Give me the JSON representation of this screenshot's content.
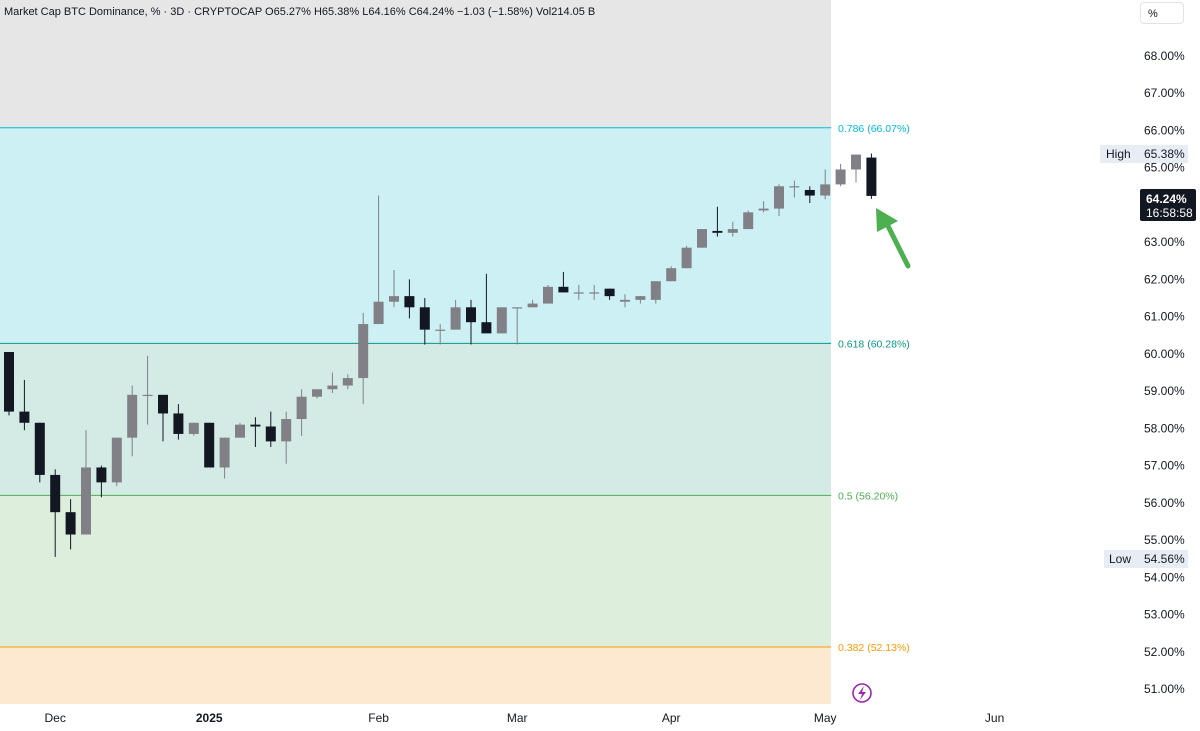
{
  "legend": {
    "text": "Market Cap BTC Dominance, % · 3D · CRYPTOCAP  O65.27%  H65.38%  L64.16%  C64.24%  −1.03 (−1.58%)  Vol214.05 B"
  },
  "unit_label": "%",
  "price_tag": {
    "value": "64.24%",
    "countdown": "16:58:58"
  },
  "high_tag": {
    "label": "High",
    "value": "65.38%"
  },
  "low_tag": {
    "label": "Low",
    "value": "54.56%"
  },
  "colors": {
    "bear_candle": "#131722",
    "bull_candle": "#808086",
    "arrow": "#4caf50",
    "lightning": "#9c27b0"
  },
  "chart_data": {
    "type": "candlestick",
    "title": "Market Cap BTC Dominance, %",
    "ylim": [
      50.6,
      69.5
    ],
    "y_ticks": [
      "68.00%",
      "67.00%",
      "66.00%",
      "65.00%",
      "64.00%",
      "63.00%",
      "62.00%",
      "61.00%",
      "60.00%",
      "59.00%",
      "58.00%",
      "57.00%",
      "56.00%",
      "55.00%",
      "54.00%",
      "53.00%",
      "52.00%",
      "51.00%"
    ],
    "y_tick_values": [
      68,
      67,
      66,
      65,
      64,
      63,
      62,
      61,
      60,
      59,
      58,
      57,
      56,
      55,
      54,
      53,
      52,
      51
    ],
    "x_ticks": [
      "Dec",
      "2025",
      "Feb",
      "Mar",
      "Apr",
      "May",
      "Jun"
    ],
    "x_tick_index": [
      3,
      13,
      24,
      33,
      43,
      53,
      64
    ],
    "fib_levels": [
      {
        "label": "0.786 (66.07%)",
        "value": 66.07,
        "color": "#00bcd4",
        "fill": "#cdf0f5"
      },
      {
        "label": "0.618 (60.28%)",
        "value": 60.28,
        "color": "#089981",
        "fill": "#d4ebe5"
      },
      {
        "label": "0.5 (56.20%)",
        "value": 56.2,
        "color": "#4caf50",
        "fill": "#ddeedd"
      },
      {
        "label": "0.382 (52.13%)",
        "value": 52.13,
        "color": "#ff9800",
        "fill": "#fde9d0"
      }
    ],
    "top_zone_fill": "#e6e6e6",
    "candles": [
      {
        "o": 60.05,
        "h": 60.05,
        "l": 58.35,
        "c": 58.45
      },
      {
        "o": 58.45,
        "h": 59.3,
        "l": 57.95,
        "c": 58.15
      },
      {
        "o": 58.15,
        "h": 58.15,
        "l": 56.55,
        "c": 56.75
      },
      {
        "o": 56.75,
        "h": 56.9,
        "l": 54.55,
        "c": 55.75
      },
      {
        "o": 55.75,
        "h": 56.1,
        "l": 54.75,
        "c": 55.15
      },
      {
        "o": 55.15,
        "h": 57.95,
        "l": 55.15,
        "c": 56.95
      },
      {
        "o": 56.95,
        "h": 57.0,
        "l": 56.15,
        "c": 56.55
      },
      {
        "o": 56.55,
        "h": 57.75,
        "l": 56.45,
        "c": 57.75
      },
      {
        "o": 57.75,
        "h": 59.15,
        "l": 57.25,
        "c": 58.9
      },
      {
        "o": 58.9,
        "h": 59.95,
        "l": 58.1,
        "c": 58.9
      },
      {
        "o": 58.9,
        "h": 58.9,
        "l": 57.65,
        "c": 58.4
      },
      {
        "o": 58.4,
        "h": 58.65,
        "l": 57.7,
        "c": 57.85
      },
      {
        "o": 57.85,
        "h": 58.15,
        "l": 57.8,
        "c": 58.15
      },
      {
        "o": 58.15,
        "h": 58.15,
        "l": 56.95,
        "c": 56.95
      },
      {
        "o": 56.95,
        "h": 57.75,
        "l": 56.65,
        "c": 57.75
      },
      {
        "o": 57.75,
        "h": 58.15,
        "l": 57.75,
        "c": 58.1
      },
      {
        "o": 58.1,
        "h": 58.3,
        "l": 57.5,
        "c": 58.05
      },
      {
        "o": 58.05,
        "h": 58.45,
        "l": 57.5,
        "c": 57.65
      },
      {
        "o": 57.65,
        "h": 58.45,
        "l": 57.05,
        "c": 58.25
      },
      {
        "o": 58.25,
        "h": 59.05,
        "l": 57.8,
        "c": 58.85
      },
      {
        "o": 58.85,
        "h": 59.05,
        "l": 58.8,
        "c": 59.05
      },
      {
        "o": 59.05,
        "h": 59.5,
        "l": 58.95,
        "c": 59.15
      },
      {
        "o": 59.15,
        "h": 59.45,
        "l": 59.05,
        "c": 59.35
      },
      {
        "o": 59.35,
        "h": 61.1,
        "l": 58.65,
        "c": 60.8
      },
      {
        "o": 60.8,
        "h": 64.25,
        "l": 60.8,
        "c": 61.4
      },
      {
        "o": 61.4,
        "h": 62.25,
        "l": 61.25,
        "c": 61.55
      },
      {
        "o": 61.55,
        "h": 62.0,
        "l": 60.95,
        "c": 61.25
      },
      {
        "o": 61.25,
        "h": 61.5,
        "l": 60.25,
        "c": 60.65
      },
      {
        "o": 60.65,
        "h": 60.8,
        "l": 60.25,
        "c": 60.65
      },
      {
        "o": 60.65,
        "h": 61.45,
        "l": 60.65,
        "c": 61.25
      },
      {
        "o": 61.25,
        "h": 61.45,
        "l": 60.25,
        "c": 60.85
      },
      {
        "o": 60.85,
        "h": 62.15,
        "l": 60.65,
        "c": 60.55
      },
      {
        "o": 60.55,
        "h": 61.25,
        "l": 60.55,
        "c": 61.25
      },
      {
        "o": 61.25,
        "h": 61.25,
        "l": 60.25,
        "c": 61.25
      },
      {
        "o": 61.25,
        "h": 61.45,
        "l": 61.25,
        "c": 61.35
      },
      {
        "o": 61.35,
        "h": 61.85,
        "l": 61.35,
        "c": 61.8
      },
      {
        "o": 61.8,
        "h": 62.2,
        "l": 61.65,
        "c": 61.65
      },
      {
        "o": 61.65,
        "h": 61.85,
        "l": 61.45,
        "c": 61.65
      },
      {
        "o": 61.65,
        "h": 61.85,
        "l": 61.45,
        "c": 61.65
      },
      {
        "o": 61.75,
        "h": 61.75,
        "l": 61.45,
        "c": 61.55
      },
      {
        "o": 61.4,
        "h": 61.6,
        "l": 61.25,
        "c": 61.45
      },
      {
        "o": 61.45,
        "h": 61.55,
        "l": 61.35,
        "c": 61.55
      },
      {
        "o": 61.45,
        "h": 61.95,
        "l": 61.35,
        "c": 61.95
      },
      {
        "o": 61.95,
        "h": 62.35,
        "l": 61.95,
        "c": 62.3
      },
      {
        "o": 62.3,
        "h": 62.9,
        "l": 62.3,
        "c": 62.85
      },
      {
        "o": 62.85,
        "h": 63.35,
        "l": 62.85,
        "c": 63.35
      },
      {
        "o": 63.3,
        "h": 63.95,
        "l": 63.15,
        "c": 63.25
      },
      {
        "o": 63.25,
        "h": 63.55,
        "l": 63.15,
        "c": 63.35
      },
      {
        "o": 63.35,
        "h": 63.85,
        "l": 63.35,
        "c": 63.8
      },
      {
        "o": 63.85,
        "h": 64.1,
        "l": 63.8,
        "c": 63.9
      },
      {
        "o": 63.9,
        "h": 64.55,
        "l": 63.7,
        "c": 64.5
      },
      {
        "o": 64.5,
        "h": 64.65,
        "l": 64.2,
        "c": 64.5
      },
      {
        "o": 64.4,
        "h": 64.5,
        "l": 64.05,
        "c": 64.25
      },
      {
        "o": 64.25,
        "h": 64.95,
        "l": 64.15,
        "c": 64.55
      },
      {
        "o": 64.55,
        "h": 65.1,
        "l": 64.5,
        "c": 64.95
      },
      {
        "o": 64.95,
        "h": 65.35,
        "l": 64.6,
        "c": 65.35
      },
      {
        "o": 65.27,
        "h": 65.38,
        "l": 64.16,
        "c": 64.24
      }
    ]
  }
}
